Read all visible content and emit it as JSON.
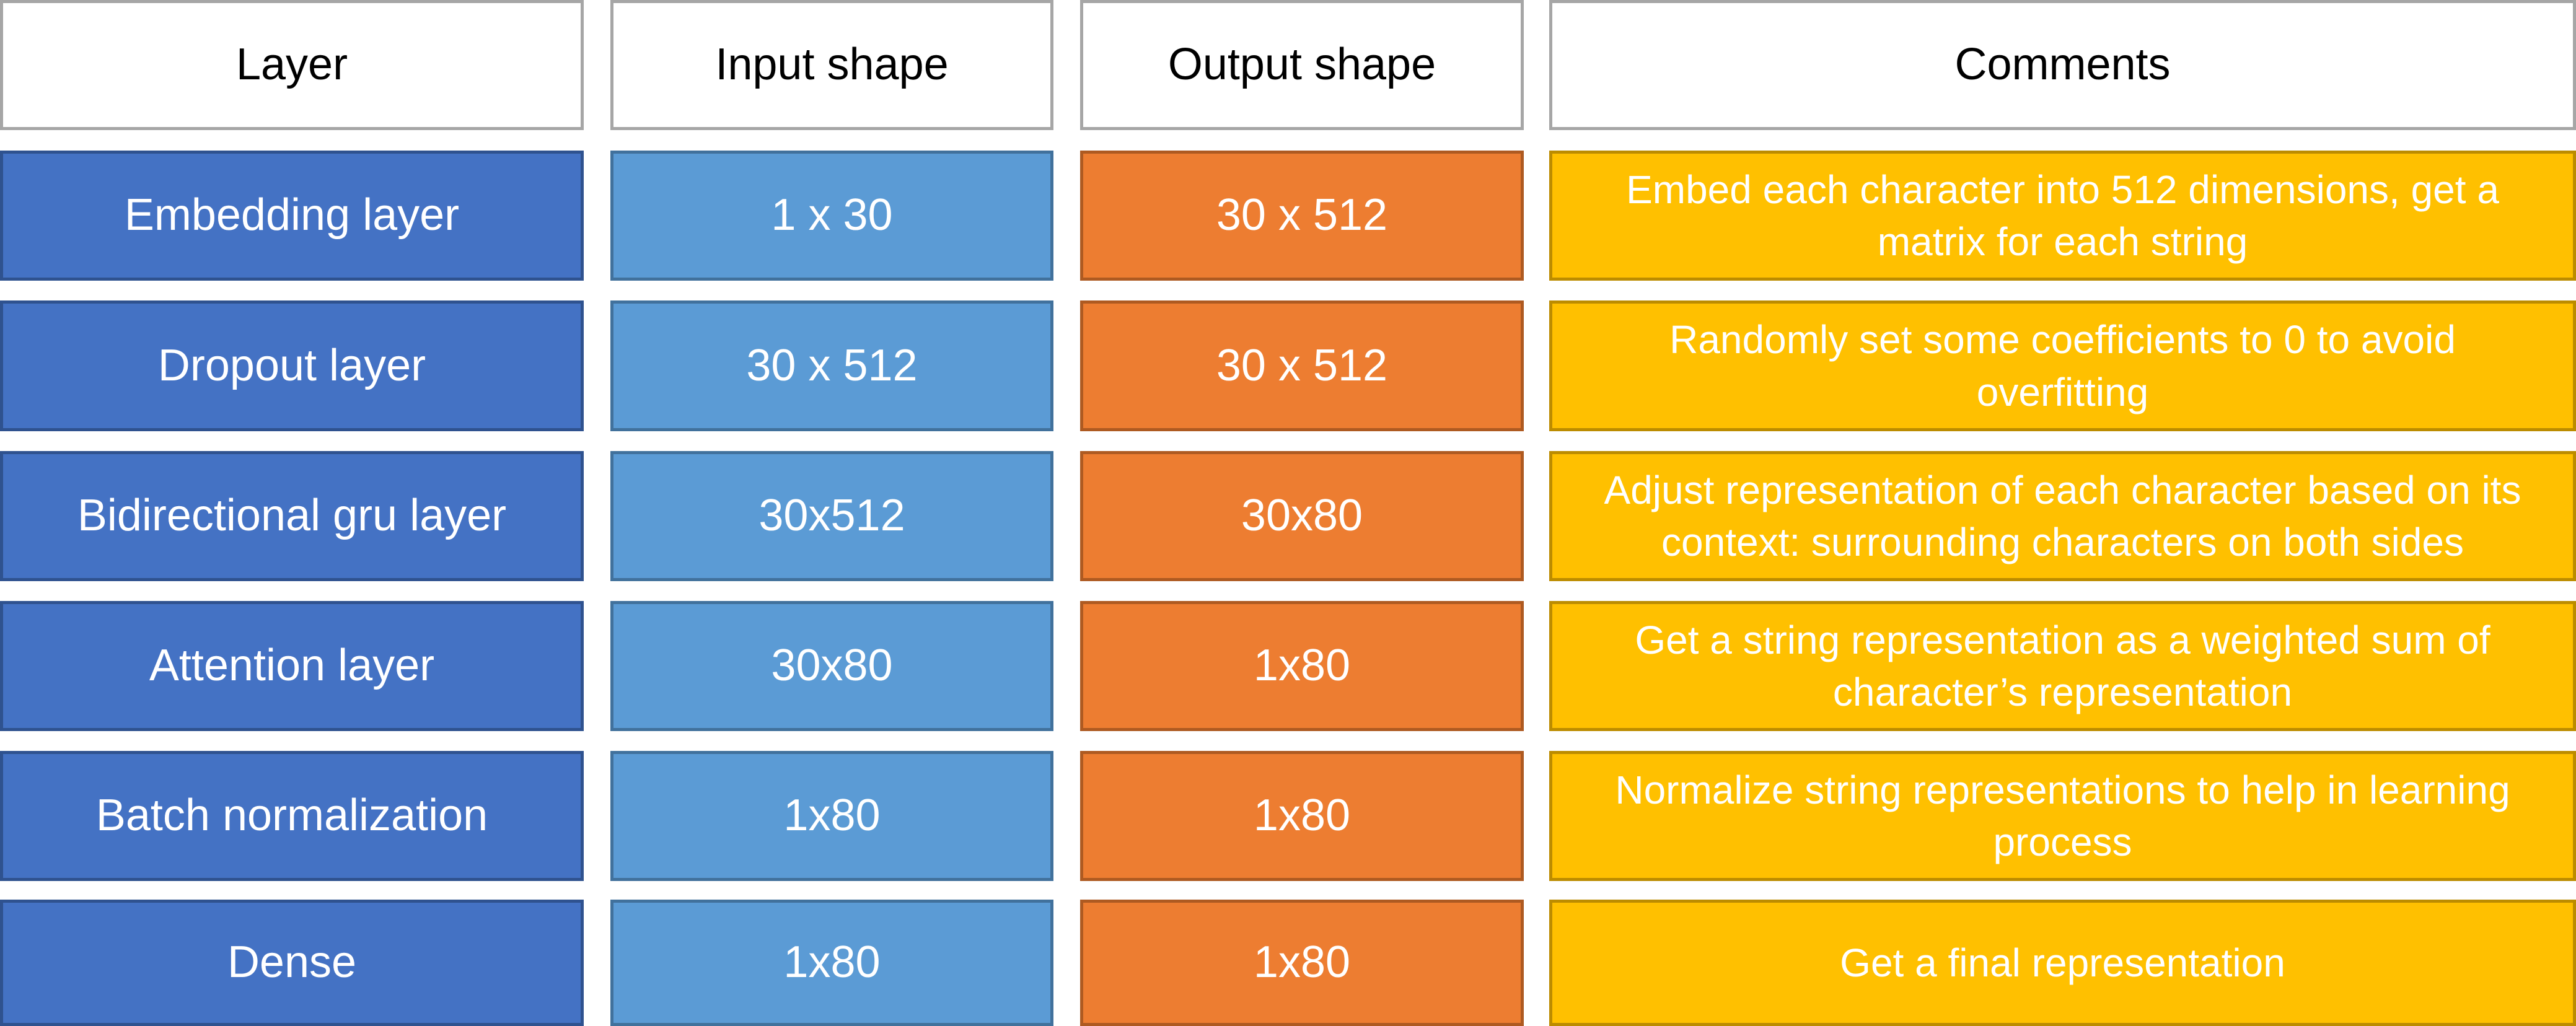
{
  "headers": {
    "layer": "Layer",
    "input_shape": "Input shape",
    "output_shape": "Output shape",
    "comments": "Comments"
  },
  "rows": [
    {
      "layer": "Embedding layer",
      "input_shape": "1 x 30",
      "output_shape": "30 x 512",
      "comment": "Embed each character into 512 dimensions, get a matrix for each string"
    },
    {
      "layer": "Dropout layer",
      "input_shape": "30 x 512",
      "output_shape": "30 x 512",
      "comment": "Randomly set some coefficients to 0 to avoid overfitting"
    },
    {
      "layer": "Bidirectional gru layer",
      "input_shape": "30x512",
      "output_shape": "30x80",
      "comment": "Adjust representation of each character based on its context: surrounding characters on both sides"
    },
    {
      "layer": "Attention layer",
      "input_shape": "30x80",
      "output_shape": "1x80",
      "comment": "Get a string representation as a weighted sum of character’s representation"
    },
    {
      "layer": "Batch normalization",
      "input_shape": "1x80",
      "output_shape": "1x80",
      "comment": "Normalize string representations to help in learning process"
    },
    {
      "layer": "Dense",
      "input_shape": "1x80",
      "output_shape": "1x80",
      "comment": "Get a final representation"
    }
  ],
  "colors": {
    "layer_fill": "#4472c4",
    "input_fill": "#5b9bd5",
    "output_fill": "#ed7d31",
    "comment_fill": "#ffc000",
    "header_fill": "#ffffff",
    "header_border": "#a6a6a6"
  }
}
